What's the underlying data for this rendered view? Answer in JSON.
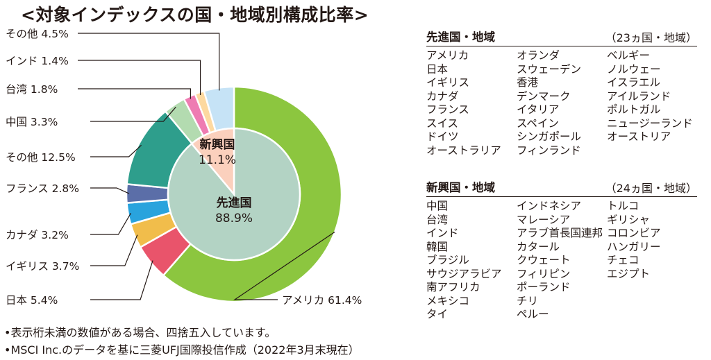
{
  "title": "<対象インデックスの国・地域別構成比率>",
  "chart_data": {
    "type": "pie",
    "outer": {
      "labels": [
        "アメリカ 61.4%",
        "日本 5.4%",
        "イギリス 3.7%",
        "カナダ 3.2%",
        "フランス 2.8%",
        "その他 12.5%",
        "中国 3.3%",
        "台湾 1.8%",
        "インド 1.4%",
        "その他 4.5%"
      ],
      "values": [
        61.4,
        5.4,
        3.7,
        3.2,
        2.8,
        12.5,
        3.3,
        1.8,
        1.4,
        4.5
      ],
      "colors": [
        "#8cc63f",
        "#e9546b",
        "#f1bd4b",
        "#29a3dd",
        "#5b6ea8",
        "#2e9e8c",
        "#b3dbb0",
        "#ee7cb2",
        "#fdd9a0",
        "#c6e3f6"
      ]
    },
    "inner": {
      "labels": [
        "先進国",
        "新興国"
      ],
      "values": [
        88.9,
        11.1
      ],
      "value_labels": [
        "88.9%",
        "11.1%"
      ],
      "colors": [
        "#b3d3c4",
        "#fbd0bd"
      ]
    }
  },
  "developed": {
    "title": "先進国・地域",
    "count": "（23ヵ国・地域）",
    "columns": [
      [
        "アメリカ",
        "日本",
        "イギリス",
        "カナダ",
        "フランス",
        "スイス",
        "ドイツ",
        "オーストラリア"
      ],
      [
        "オランダ",
        "スウェーデン",
        "香港",
        "デンマーク",
        "イタリア",
        "スペイン",
        "シンガポール",
        "フィンランド"
      ],
      [
        "ベルギー",
        "ノルウェー",
        "イスラエル",
        "アイルランド",
        "ポルトガル",
        "ニュージーランド",
        "オーストリア"
      ]
    ]
  },
  "emerging": {
    "title": "新興国・地域",
    "count": "（24ヵ国・地域）",
    "columns": [
      [
        "中国",
        "台湾",
        "インド",
        "韓国",
        "ブラジル",
        "サウジアラビア",
        "南アフリカ",
        "メキシコ",
        "タイ"
      ],
      [
        "インドネシア",
        "マレーシア",
        "アラブ首長国連邦",
        "カタール",
        "クウェート",
        "フィリピン",
        "ポーランド",
        "チリ",
        "ペルー"
      ],
      [
        "トルコ",
        "ギリシャ",
        "コロンビア",
        "ハンガリー",
        "チェコ",
        "エジプト"
      ]
    ]
  },
  "notes": [
    "•表示桁未満の数値がある場合、四捨五入しています。",
    "•MSCI Inc.のデータを基に三菱UFJ国際投信作成（2022年3月末現在）"
  ]
}
